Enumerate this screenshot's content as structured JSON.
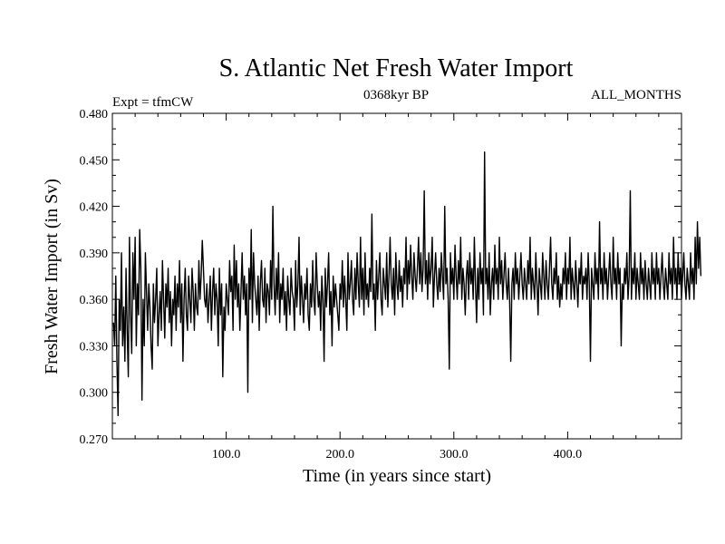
{
  "chart_data": {
    "type": "line",
    "title": "S. Atlantic Net Fresh Water Import",
    "subtitle_left": "Expt = tfmCW",
    "subtitle_center": "0368kyr BP",
    "subtitle_right": "ALL_MONTHS",
    "xlabel": "Time (in years since start)",
    "ylabel": "Fresh Water Import (in Sv)",
    "xlim": [
      0,
      500
    ],
    "ylim": [
      0.27,
      0.48
    ],
    "x_ticks": [
      100,
      200,
      300,
      400
    ],
    "x_tick_labels": [
      "100.0",
      "200.0",
      "300.0",
      "400.0"
    ],
    "y_ticks": [
      0.27,
      0.3,
      0.33,
      0.36,
      0.39,
      0.42,
      0.45,
      0.48
    ],
    "y_tick_labels": [
      "0.270",
      "0.300",
      "0.330",
      "0.360",
      "0.390",
      "0.420",
      "0.450",
      "0.480"
    ],
    "series": [
      {
        "name": "Net Fresh Water Import",
        "color": "#000000",
        "x_start": 1,
        "x_step": 1,
        "values": [
          0.345,
          0.33,
          0.375,
          0.32,
          0.285,
          0.36,
          0.34,
          0.39,
          0.33,
          0.355,
          0.32,
          0.38,
          0.34,
          0.31,
          0.4,
          0.35,
          0.325,
          0.39,
          0.36,
          0.4,
          0.33,
          0.37,
          0.35,
          0.405,
          0.38,
          0.295,
          0.36,
          0.33,
          0.39,
          0.365,
          0.34,
          0.37,
          0.355,
          0.33,
          0.315,
          0.37,
          0.345,
          0.36,
          0.38,
          0.33,
          0.35,
          0.365,
          0.34,
          0.385,
          0.36,
          0.335,
          0.37,
          0.355,
          0.38,
          0.345,
          0.365,
          0.33,
          0.36,
          0.35,
          0.375,
          0.34,
          0.37,
          0.355,
          0.385,
          0.345,
          0.37,
          0.32,
          0.36,
          0.38,
          0.35,
          0.34,
          0.375,
          0.36,
          0.345,
          0.38,
          0.365,
          0.34,
          0.37,
          0.355,
          0.35,
          0.385,
          0.36,
          0.375,
          0.398,
          0.38,
          0.36,
          0.355,
          0.37,
          0.345,
          0.36,
          0.375,
          0.34,
          0.365,
          0.38,
          0.35,
          0.37,
          0.36,
          0.33,
          0.38,
          0.35,
          0.37,
          0.31,
          0.355,
          0.34,
          0.37,
          0.36,
          0.35,
          0.385,
          0.365,
          0.375,
          0.34,
          0.395,
          0.36,
          0.385,
          0.355,
          0.37,
          0.34,
          0.365,
          0.39,
          0.36,
          0.375,
          0.35,
          0.37,
          0.3,
          0.38,
          0.36,
          0.405,
          0.345,
          0.39,
          0.37,
          0.36,
          0.35,
          0.375,
          0.34,
          0.37,
          0.385,
          0.36,
          0.355,
          0.38,
          0.345,
          0.37,
          0.365,
          0.35,
          0.385,
          0.36,
          0.42,
          0.37,
          0.35,
          0.38,
          0.36,
          0.39,
          0.345,
          0.37,
          0.36,
          0.38,
          0.35,
          0.365,
          0.34,
          0.375,
          0.36,
          0.35,
          0.38,
          0.365,
          0.36,
          0.34,
          0.385,
          0.355,
          0.37,
          0.4,
          0.35,
          0.375,
          0.36,
          0.345,
          0.37,
          0.36,
          0.38,
          0.35,
          0.34,
          0.37,
          0.355,
          0.385,
          0.36,
          0.35,
          0.39,
          0.37,
          0.355,
          0.365,
          0.34,
          0.375,
          0.36,
          0.32,
          0.38,
          0.355,
          0.37,
          0.39,
          0.35,
          0.365,
          0.33,
          0.375,
          0.355,
          0.37,
          0.36,
          0.35,
          0.34,
          0.37,
          0.36,
          0.385,
          0.355,
          0.375,
          0.36,
          0.34,
          0.39,
          0.36,
          0.37,
          0.385,
          0.36,
          0.35,
          0.38,
          0.36,
          0.39,
          0.37,
          0.355,
          0.4,
          0.36,
          0.38,
          0.35,
          0.39,
          0.36,
          0.37,
          0.355,
          0.38,
          0.365,
          0.415,
          0.36,
          0.37,
          0.34,
          0.385,
          0.36,
          0.375,
          0.39,
          0.36,
          0.35,
          0.38,
          0.37,
          0.36,
          0.39,
          0.355,
          0.375,
          0.4,
          0.37,
          0.36,
          0.38,
          0.35,
          0.39,
          0.37,
          0.36,
          0.385,
          0.365,
          0.375,
          0.355,
          0.38,
          0.37,
          0.4,
          0.36,
          0.385,
          0.37,
          0.395,
          0.375,
          0.36,
          0.39,
          0.375,
          0.365,
          0.38,
          0.4,
          0.37,
          0.39,
          0.365,
          0.38,
          0.43,
          0.37,
          0.385,
          0.36,
          0.39,
          0.37,
          0.38,
          0.4,
          0.355,
          0.375,
          0.39,
          0.37,
          0.36,
          0.38,
          0.365,
          0.39,
          0.375,
          0.36,
          0.42,
          0.37,
          0.38,
          0.36,
          0.315,
          0.39,
          0.37,
          0.38,
          0.36,
          0.395,
          0.375,
          0.36,
          0.385,
          0.37,
          0.4,
          0.36,
          0.38,
          0.37,
          0.35,
          0.375,
          0.385,
          0.36,
          0.39,
          0.37,
          0.38,
          0.36,
          0.4,
          0.37,
          0.345,
          0.38,
          0.36,
          0.39,
          0.37,
          0.38,
          0.35,
          0.455,
          0.37,
          0.38,
          0.36,
          0.39,
          0.35,
          0.37,
          0.38,
          0.36,
          0.395,
          0.37,
          0.38,
          0.36,
          0.4,
          0.37,
          0.385,
          0.36,
          0.375,
          0.39,
          0.37,
          0.36,
          0.38,
          0.36,
          0.32,
          0.37,
          0.38,
          0.36,
          0.39,
          0.37,
          0.38,
          0.36,
          0.375,
          0.39,
          0.37,
          0.36,
          0.38,
          0.37,
          0.36,
          0.385,
          0.37,
          0.4,
          0.36,
          0.38,
          0.37,
          0.36,
          0.39,
          0.37,
          0.35,
          0.38,
          0.37,
          0.36,
          0.39,
          0.375,
          0.36,
          0.385,
          0.37,
          0.36,
          0.38,
          0.4,
          0.37,
          0.36,
          0.38,
          0.37,
          0.39,
          0.36,
          0.375,
          0.355,
          0.37,
          0.36,
          0.38,
          0.37,
          0.39,
          0.36,
          0.38,
          0.37,
          0.4,
          0.36,
          0.38,
          0.37,
          0.36,
          0.385,
          0.37,
          0.355,
          0.38,
          0.37,
          0.39,
          0.36,
          0.375,
          0.37,
          0.38,
          0.36,
          0.39,
          0.37,
          0.32,
          0.38,
          0.37,
          0.36,
          0.39,
          0.37,
          0.38,
          0.36,
          0.41,
          0.37,
          0.38,
          0.36,
          0.39,
          0.37,
          0.38,
          0.36,
          0.375,
          0.39,
          0.37,
          0.36,
          0.4,
          0.37,
          0.38,
          0.36,
          0.39,
          0.37,
          0.38,
          0.33,
          0.37,
          0.36,
          0.38,
          0.37,
          0.39,
          0.36,
          0.375,
          0.43,
          0.36,
          0.38,
          0.37,
          0.39,
          0.36,
          0.38,
          0.37,
          0.36,
          0.39,
          0.37,
          0.38,
          0.36,
          0.385,
          0.37,
          0.36,
          0.38,
          0.37,
          0.36,
          0.39,
          0.37,
          0.38,
          0.36,
          0.39,
          0.37,
          0.38,
          0.36,
          0.375,
          0.39,
          0.37,
          0.36,
          0.38,
          0.37,
          0.36,
          0.39,
          0.37,
          0.38,
          0.36,
          0.4,
          0.37,
          0.38,
          0.36,
          0.39,
          0.37,
          0.38,
          0.36,
          0.375,
          0.39,
          0.37,
          0.36,
          0.38,
          0.37,
          0.36,
          0.39,
          0.37,
          0.38,
          0.36,
          0.4,
          0.37,
          0.41,
          0.38,
          0.4,
          0.375
        ]
      }
    ]
  }
}
